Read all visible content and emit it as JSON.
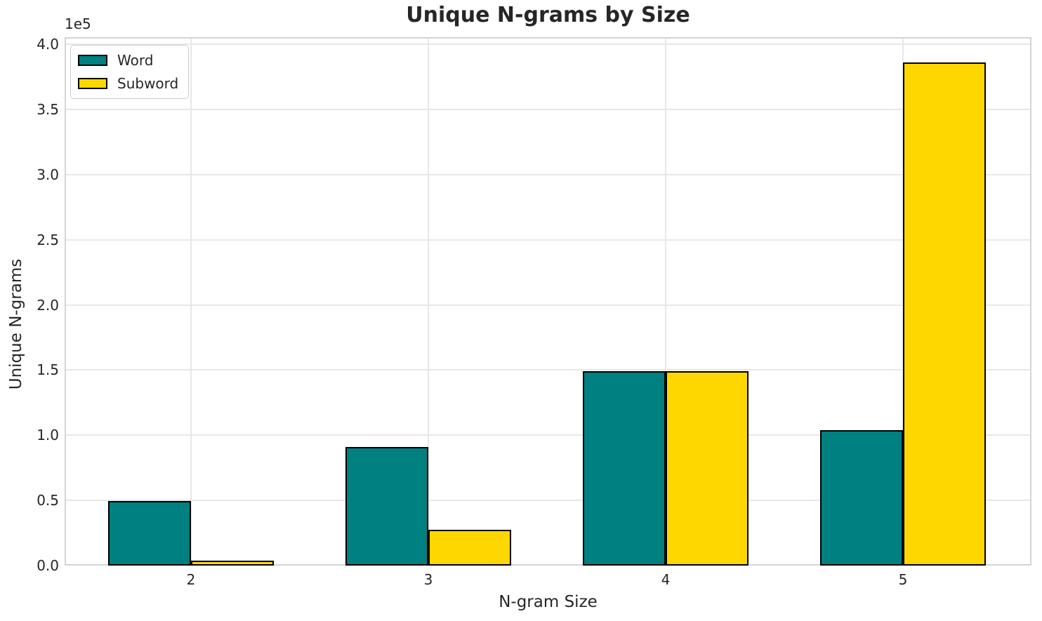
{
  "chart_data": {
    "type": "bar",
    "title": "Unique N-grams by Size",
    "xlabel": "N-gram Size",
    "ylabel": "Unique N-grams",
    "y_offset_text": "1e5",
    "categories": [
      "2",
      "3",
      "4",
      "5"
    ],
    "x_positions": [
      2,
      3,
      4,
      5
    ],
    "series": [
      {
        "name": "Word",
        "color": "#008080",
        "values": [
          49400,
          90800,
          148900,
          104000
        ]
      },
      {
        "name": "Subword",
        "color": "#FFD700",
        "values": [
          3800,
          27500,
          149300,
          386000
        ]
      }
    ],
    "bar_edge_color": "#000000",
    "bar_width": 0.35,
    "xlim": [
      1.4675,
      5.5414
    ],
    "ylim": [
      0,
      405400
    ],
    "y_ticks": [
      {
        "value": 0,
        "label": "0.0"
      },
      {
        "value": 50000,
        "label": "0.5"
      },
      {
        "value": 100000,
        "label": "1.0"
      },
      {
        "value": 150000,
        "label": "1.5"
      },
      {
        "value": 200000,
        "label": "2.0"
      },
      {
        "value": 250000,
        "label": "2.5"
      },
      {
        "value": 300000,
        "label": "3.0"
      },
      {
        "value": 350000,
        "label": "3.5"
      },
      {
        "value": 400000,
        "label": "4.0"
      }
    ],
    "grid": true,
    "legend_position": "upper left",
    "colors": {
      "text": "#262626",
      "grid": "#e7e7e7",
      "frame": "#d4d4d4",
      "background": "#ffffff"
    }
  }
}
